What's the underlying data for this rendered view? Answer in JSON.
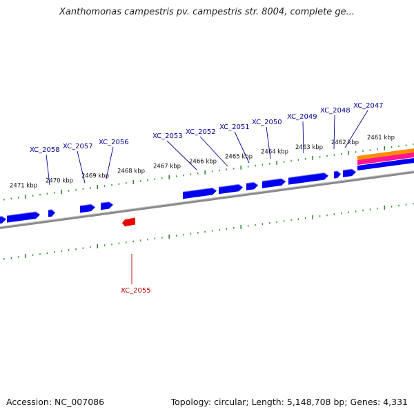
{
  "title": "Xanthomonas campestris pv. campestris str. 8004, complete ge...",
  "footer": {
    "accession": "Accession: NC_007086",
    "topology": "Topology: circular; Length: 5,148,708 bp; Genes: 4,331"
  },
  "colors": {
    "forward_gene": "#0000ee",
    "reverse_gene": "#ee0000",
    "forward_label": "#00008b",
    "reverse_label": "#b00000",
    "backbone": "#8a8a8a",
    "ticks": "#2e8b2e",
    "track_orange": "#ff8c00",
    "track_pink": "#ff1493"
  },
  "kbp_labels": [
    "2471 kbp",
    "2470 kbp",
    "2469 kbp",
    "2468 kbp",
    "2467 kbp",
    "2466 kbp",
    "2465 kbp",
    "2464 kbp",
    "2463 kbp",
    "2462 kbp",
    "2461 kbp"
  ],
  "gene_labels": [
    {
      "name": "XC_2058",
      "strand": "forward"
    },
    {
      "name": "XC_2057",
      "strand": "forward"
    },
    {
      "name": "XC_2056",
      "strand": "forward"
    },
    {
      "name": "XC_2053",
      "strand": "forward"
    },
    {
      "name": "XC_2052",
      "strand": "forward"
    },
    {
      "name": "XC_2051",
      "strand": "forward"
    },
    {
      "name": "XC_2050",
      "strand": "forward"
    },
    {
      "name": "XC_2049",
      "strand": "forward"
    },
    {
      "name": "XC_2048",
      "strand": "forward"
    },
    {
      "name": "XC_2047",
      "strand": "forward"
    },
    {
      "name": "XC_2055",
      "strand": "reverse"
    }
  ]
}
